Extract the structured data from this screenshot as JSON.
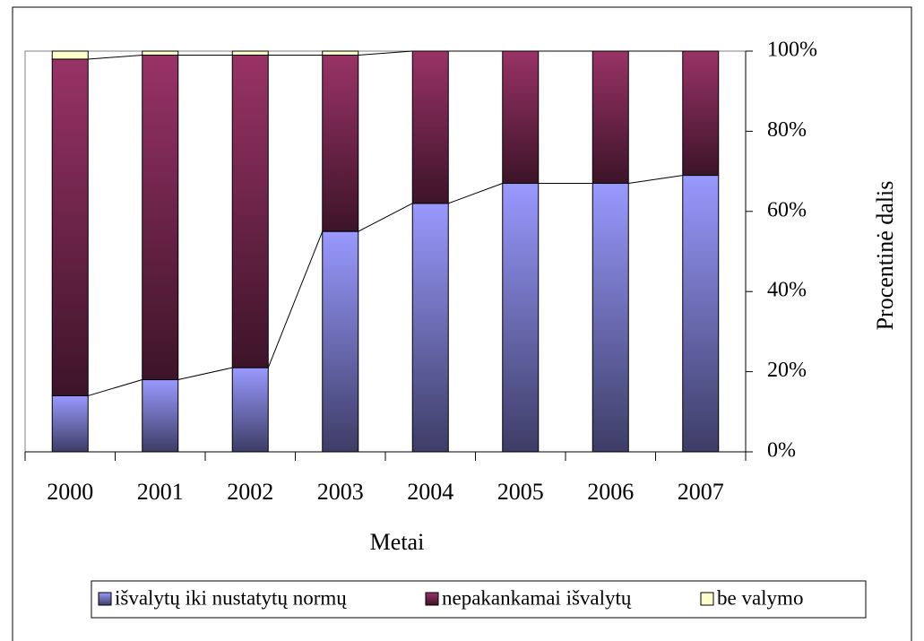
{
  "chart_data": {
    "type": "bar",
    "stacked": true,
    "categories": [
      "2000",
      "2001",
      "2002",
      "2003",
      "2004",
      "2005",
      "2006",
      "2007"
    ],
    "series": [
      {
        "name": "išvalytų iki nustatytų normų",
        "color": "#9999ff",
        "values": [
          14,
          18,
          21,
          55,
          62,
          67,
          67,
          69
        ]
      },
      {
        "name": "nepakankamai išvalytų",
        "color": "#993366",
        "values": [
          84,
          81,
          78,
          44,
          38,
          33,
          33,
          31
        ]
      },
      {
        "name": "be valymo",
        "color": "#ffffcc",
        "values": [
          2,
          1,
          1,
          1,
          0,
          0,
          0,
          0
        ]
      }
    ],
    "xlabel": "Metai",
    "ylabel": "Procentinė dalis",
    "ylim": [
      0,
      100
    ],
    "yticks": [
      {
        "value": 0,
        "label": "0%"
      },
      {
        "value": 20,
        "label": "20%"
      },
      {
        "value": 40,
        "label": "40%"
      },
      {
        "value": 60,
        "label": "60%"
      },
      {
        "value": 80,
        "label": "80%"
      },
      {
        "value": 100,
        "label": "100%"
      }
    ],
    "yaxis_side": "right",
    "legend": "bottom"
  }
}
